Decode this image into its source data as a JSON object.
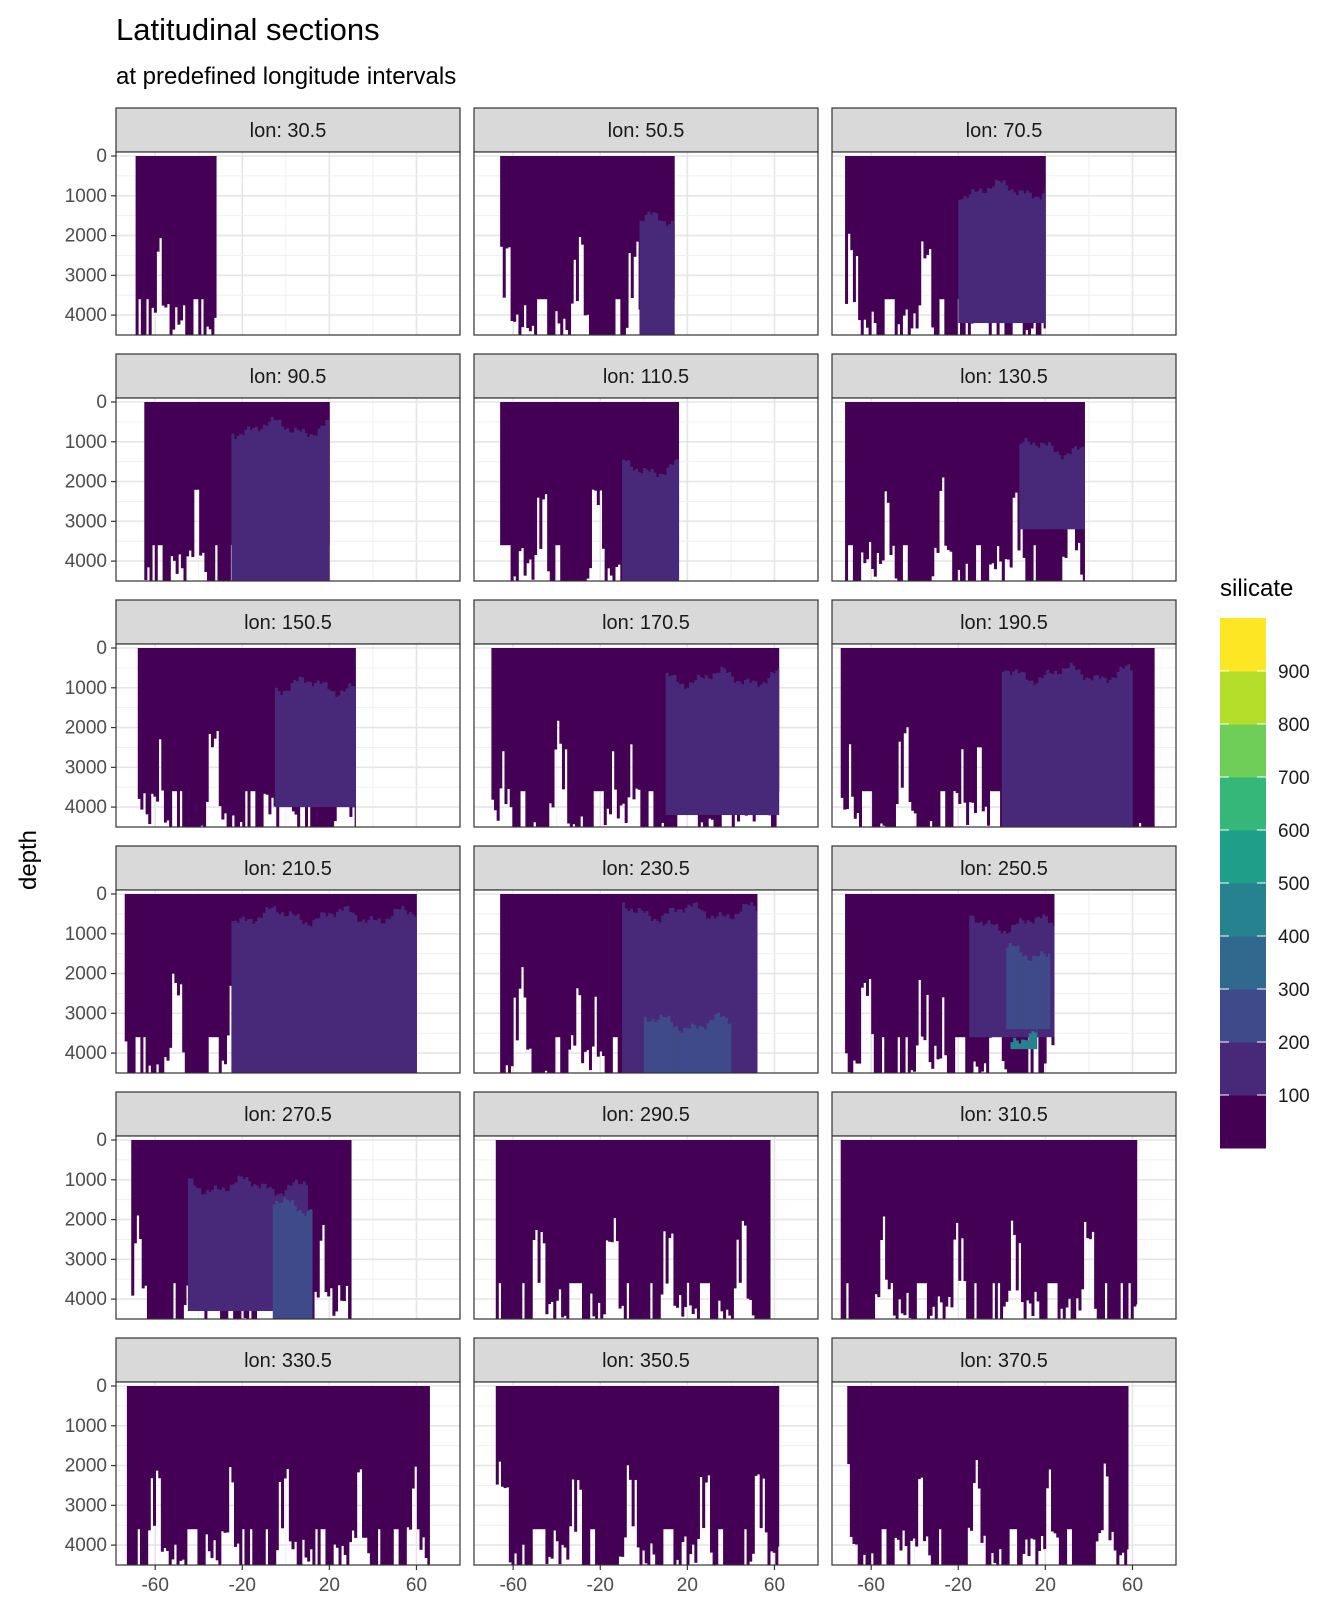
{
  "header": {
    "title": "Latitudinal sections",
    "subtitle": "at predefined longitude intervals"
  },
  "axes": {
    "y_title": "depth"
  },
  "legend": {
    "title": "silicate",
    "labels": [
      "100",
      "200",
      "300",
      "400",
      "500",
      "600",
      "700",
      "800",
      "900"
    ]
  },
  "chart_data": {
    "type": "heatmap",
    "title": "Latitudinal sections",
    "subtitle": "at predefined longitude intervals",
    "xlabel": "",
    "ylabel": "depth",
    "x_ticks": [
      -60,
      -20,
      20,
      60
    ],
    "y_ticks": [
      0,
      1000,
      2000,
      3000,
      4000
    ],
    "xlim": [
      -78,
      80
    ],
    "ylim": [
      4500,
      0
    ],
    "y_reversed": true,
    "grid": true,
    "legend_position": "right",
    "fill_variable": "silicate",
    "color_breaks": [
      0,
      100,
      200,
      300,
      400,
      500,
      600,
      700,
      800,
      900,
      1000
    ],
    "colors": [
      "#440154",
      "#482878",
      "#3e4a89",
      "#31688e",
      "#26828e",
      "#1f9e89",
      "#35b779",
      "#6ece58",
      "#b5de2b",
      "#fde725"
    ],
    "panels": [
      {
        "label": "lon: 30.5",
        "lat_range": [
          -69,
          -32
        ],
        "max_depth": 4500,
        "mean_silicate": 60,
        "regions": [
          {
            "lat": [
              -69,
              -32
            ],
            "depth": [
              0,
              4500
            ],
            "silicate": 60
          }
        ]
      },
      {
        "label": "lon: 50.5",
        "lat_range": [
          -66,
          14
        ],
        "max_depth": 4500,
        "mean_silicate": 70,
        "regions": [
          {
            "lat": [
              -66,
              14
            ],
            "depth": [
              0,
              4500
            ],
            "silicate": 70
          },
          {
            "lat": [
              -2,
              14
            ],
            "depth": [
              1500,
              4500
            ],
            "silicate": 140
          }
        ]
      },
      {
        "label": "lon: 70.5",
        "lat_range": [
          -72,
          20
        ],
        "max_depth": 4500,
        "mean_silicate": 80,
        "regions": [
          {
            "lat": [
              -72,
              20
            ],
            "depth": [
              0,
              4500
            ],
            "silicate": 70
          },
          {
            "lat": [
              -20,
              20
            ],
            "depth": [
              700,
              4200
            ],
            "silicate": 140
          }
        ]
      },
      {
        "label": "lon: 90.5",
        "lat_range": [
          -65,
          20
        ],
        "max_depth": 4500,
        "mean_silicate": 90,
        "regions": [
          {
            "lat": [
              -65,
              20
            ],
            "depth": [
              0,
              4500
            ],
            "silicate": 70
          },
          {
            "lat": [
              -25,
              20
            ],
            "depth": [
              500,
              4500
            ],
            "silicate": 140
          }
        ]
      },
      {
        "label": "lon: 110.5",
        "lat_range": [
          -66,
          16
        ],
        "max_depth": 4500,
        "mean_silicate": 80,
        "regions": [
          {
            "lat": [
              -66,
              16
            ],
            "depth": [
              0,
              4500
            ],
            "silicate": 70
          },
          {
            "lat": [
              -10,
              16
            ],
            "depth": [
              1500,
              4500
            ],
            "silicate": 140
          }
        ]
      },
      {
        "label": "lon: 130.5",
        "lat_range": [
          -72,
          38
        ],
        "max_depth": 4500,
        "mean_silicate": 90,
        "regions": [
          {
            "lat": [
              -72,
              38
            ],
            "depth": [
              0,
              4500
            ],
            "silicate": 70
          },
          {
            "lat": [
              8,
              38
            ],
            "depth": [
              1000,
              3200
            ],
            "silicate": 140
          }
        ]
      },
      {
        "label": "lon: 150.5",
        "lat_range": [
          -68,
          32
        ],
        "max_depth": 4500,
        "mean_silicate": 100,
        "regions": [
          {
            "lat": [
              -68,
              32
            ],
            "depth": [
              0,
              4500
            ],
            "silicate": 70
          },
          {
            "lat": [
              -5,
              32
            ],
            "depth": [
              800,
              4000
            ],
            "silicate": 140
          }
        ]
      },
      {
        "label": "lon: 170.5",
        "lat_range": [
          -70,
          62
        ],
        "max_depth": 4500,
        "mean_silicate": 110,
        "regions": [
          {
            "lat": [
              -70,
              62
            ],
            "depth": [
              0,
              4500
            ],
            "silicate": 70
          },
          {
            "lat": [
              10,
              62
            ],
            "depth": [
              600,
              4200
            ],
            "silicate": 140
          }
        ]
      },
      {
        "label": "lon: 190.5",
        "lat_range": [
          -74,
          70
        ],
        "max_depth": 4500,
        "mean_silicate": 110,
        "regions": [
          {
            "lat": [
              -74,
              70
            ],
            "depth": [
              0,
              4500
            ],
            "silicate": 70
          },
          {
            "lat": [
              0,
              60
            ],
            "depth": [
              500,
              4500
            ],
            "silicate": 140
          }
        ]
      },
      {
        "label": "lon: 210.5",
        "lat_range": [
          -74,
          60
        ],
        "max_depth": 4500,
        "mean_silicate": 110,
        "regions": [
          {
            "lat": [
              -74,
              60
            ],
            "depth": [
              0,
              4500
            ],
            "silicate": 70
          },
          {
            "lat": [
              -25,
              60
            ],
            "depth": [
              400,
              4500
            ],
            "silicate": 140
          }
        ]
      },
      {
        "label": "lon: 230.5",
        "lat_range": [
          -66,
          52
        ],
        "max_depth": 4500,
        "mean_silicate": 150,
        "regions": [
          {
            "lat": [
              -66,
              52
            ],
            "depth": [
              0,
              4500
            ],
            "silicate": 70
          },
          {
            "lat": [
              -10,
              52
            ],
            "depth": [
              300,
              4500
            ],
            "silicate": 140
          },
          {
            "lat": [
              0,
              40
            ],
            "depth": [
              3100,
              4500
            ],
            "silicate": 230
          }
        ]
      },
      {
        "label": "lon: 250.5",
        "lat_range": [
          -72,
          24
        ],
        "max_depth": 4500,
        "mean_silicate": 170,
        "regions": [
          {
            "lat": [
              -72,
              24
            ],
            "depth": [
              0,
              4500
            ],
            "silicate": 70
          },
          {
            "lat": [
              -15,
              24
            ],
            "depth": [
              600,
              3600
            ],
            "silicate": 140
          },
          {
            "lat": [
              2,
              22
            ],
            "depth": [
              1300,
              3400
            ],
            "silicate": 220
          },
          {
            "lat": [
              4,
              16
            ],
            "depth": [
              3500,
              3900
            ],
            "silicate": 460
          }
        ]
      },
      {
        "label": "lon: 270.5",
        "lat_range": [
          -71,
          30
        ],
        "max_depth": 4500,
        "mean_silicate": 150,
        "regions": [
          {
            "lat": [
              -71,
              30
            ],
            "depth": [
              0,
              4500
            ],
            "silicate": 70
          },
          {
            "lat": [
              -45,
              10
            ],
            "depth": [
              1000,
              4300
            ],
            "silicate": 140
          },
          {
            "lat": [
              -6,
              12
            ],
            "depth": [
              1500,
              4500
            ],
            "silicate": 220
          }
        ]
      },
      {
        "label": "lon: 290.5",
        "lat_range": [
          -68,
          58
        ],
        "max_depth": 4500,
        "mean_silicate": 60,
        "regions": [
          {
            "lat": [
              -68,
              58
            ],
            "depth": [
              0,
              4500
            ],
            "silicate": 60
          }
        ]
      },
      {
        "label": "lon: 310.5",
        "lat_range": [
          -74,
          62
        ],
        "max_depth": 4500,
        "mean_silicate": 70,
        "regions": [
          {
            "lat": [
              -74,
              62
            ],
            "depth": [
              0,
              4500
            ],
            "silicate": 70
          }
        ]
      },
      {
        "label": "lon: 330.5",
        "lat_range": [
          -73,
          66
        ],
        "max_depth": 4500,
        "mean_silicate": 70,
        "regions": [
          {
            "lat": [
              -73,
              66
            ],
            "depth": [
              0,
              4500
            ],
            "silicate": 70
          }
        ]
      },
      {
        "label": "lon: 350.5",
        "lat_range": [
          -68,
          62
        ],
        "max_depth": 4500,
        "mean_silicate": 70,
        "regions": [
          {
            "lat": [
              -68,
              62
            ],
            "depth": [
              0,
              4500
            ],
            "silicate": 70
          }
        ]
      },
      {
        "label": "lon: 370.5",
        "lat_range": [
          -71,
          58
        ],
        "max_depth": 4500,
        "mean_silicate": 70,
        "regions": [
          {
            "lat": [
              -71,
              58
            ],
            "depth": [
              0,
              4500
            ],
            "silicate": 70
          }
        ]
      }
    ]
  }
}
